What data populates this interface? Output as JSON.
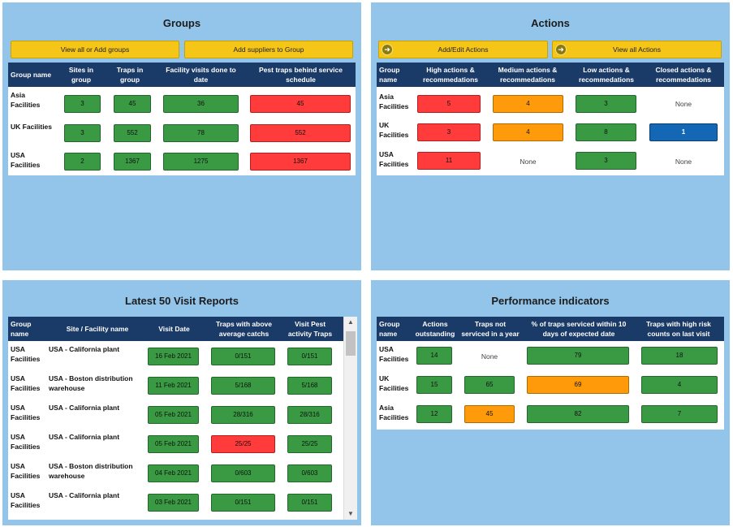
{
  "groups": {
    "title": "Groups",
    "btn_view": "View all or Add groups",
    "btn_add": "Add suppliers to Group",
    "headers": [
      "Group name",
      "Sites in group",
      "Traps in group",
      "Facility visits done to date",
      "Pest traps behind service schedule"
    ],
    "rows": [
      {
        "name": "Asia Facilities",
        "sites": "3",
        "traps": "45",
        "visits": "36",
        "behind": "45"
      },
      {
        "name": "UK Facilities",
        "sites": "3",
        "traps": "552",
        "visits": "78",
        "behind": "552"
      },
      {
        "name": "USA Facilities",
        "sites": "2",
        "traps": "1367",
        "visits": "1275",
        "behind": "1367"
      }
    ]
  },
  "actions": {
    "title": "Actions",
    "btn_add": "Add/Edit Actions",
    "btn_view": "View all Actions",
    "headers": [
      "Group name",
      "High actions & recommedations",
      "Medium actions & recommedations",
      "Low actions & recommedations",
      "Closed actions & recommedations"
    ],
    "rows": [
      {
        "name": "Asia Facilities",
        "high": "5",
        "medium": "4",
        "low": "3",
        "closed": "None"
      },
      {
        "name": "UK Facilities",
        "high": "3",
        "medium": "4",
        "low": "8",
        "closed": "1"
      },
      {
        "name": "USA Facilities",
        "high": "11",
        "medium": "None",
        "low": "3",
        "closed": "None"
      }
    ]
  },
  "visits": {
    "title": "Latest 50 Visit Reports",
    "headers": [
      "Group name",
      "Site / Facility name",
      "Visit Date",
      "Traps with above average catchs",
      "Visit Pest activity Traps"
    ],
    "rows": [
      {
        "group": "USA Facilities",
        "site": "USA - California plant",
        "date": "16 Feb 2021",
        "above": "0/151",
        "activity": "0/151"
      },
      {
        "group": "USA Facilities",
        "site": "USA - Boston distribution warehouse",
        "date": "11 Feb 2021",
        "above": "5/168",
        "activity": "5/168"
      },
      {
        "group": "USA Facilities",
        "site": "USA - California plant",
        "date": "05 Feb 2021",
        "above": "28/316",
        "activity": "28/316"
      },
      {
        "group": "USA Facilities",
        "site": "USA - California plant",
        "date": "05 Feb 2021",
        "above": "25/25",
        "activity": "25/25"
      },
      {
        "group": "USA Facilities",
        "site": "USA - Boston distribution warehouse",
        "date": "04 Feb 2021",
        "above": "0/603",
        "activity": "0/603"
      },
      {
        "group": "USA Facilities",
        "site": "USA - California plant",
        "date": "03 Feb 2021",
        "above": "0/151",
        "activity": "0/151"
      }
    ]
  },
  "performance": {
    "title": "Performance indicators",
    "headers": [
      "Group name",
      "Actions outstanding",
      "Traps not serviced in a year",
      "% of traps serviced within 10 days of expected date",
      "Traps with high risk counts on last visit"
    ],
    "rows": [
      {
        "name": "USA Facilities",
        "outstanding": "14",
        "notserviced": "None",
        "pct": "79",
        "highrisk": "18"
      },
      {
        "name": "UK Facilities",
        "outstanding": "15",
        "notserviced": "65",
        "pct": "69",
        "highrisk": "4"
      },
      {
        "name": "Asia Facilities",
        "outstanding": "12",
        "notserviced": "45",
        "pct": "82",
        "highrisk": "7"
      }
    ]
  },
  "colors": {
    "panel_bg": "#93c5eb",
    "header_bg": "#1a3a68",
    "green": "#3a9a44",
    "red": "#ff3b3b",
    "orange": "#ff9a0a",
    "blue": "#1467b5",
    "button": "#f5c518"
  }
}
